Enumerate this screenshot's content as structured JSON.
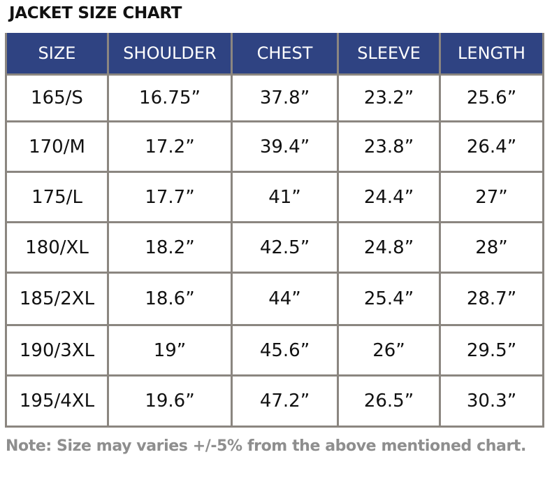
{
  "header": {
    "title": "JACKET SIZE CHART"
  },
  "table": {
    "columns": [
      "SIZE",
      "SHOULDER",
      "CHEST",
      "SLEEVE",
      "LENGTH"
    ],
    "rows": [
      [
        "165/S",
        "16.75”",
        "37.8”",
        "23.2”",
        "25.6”"
      ],
      [
        "170/M",
        "17.2”",
        "39.4”",
        "23.8”",
        "26.4”"
      ],
      [
        "175/L",
        "17.7”",
        "41”",
        "24.4”",
        "27”"
      ],
      [
        "180/XL",
        "18.2”",
        "42.5”",
        "24.8”",
        "28”"
      ],
      [
        "185/2XL",
        "18.6”",
        "44”",
        "25.4”",
        "28.7”"
      ],
      [
        "190/3XL",
        "19”",
        "45.6”",
        "26”",
        "29.5”"
      ],
      [
        "195/4XL",
        "19.6”",
        "47.2”",
        "26.5”",
        "30.3”"
      ]
    ]
  },
  "footer": {
    "note": "Note: Size may varies +/-5% from the above mentioned chart."
  }
}
